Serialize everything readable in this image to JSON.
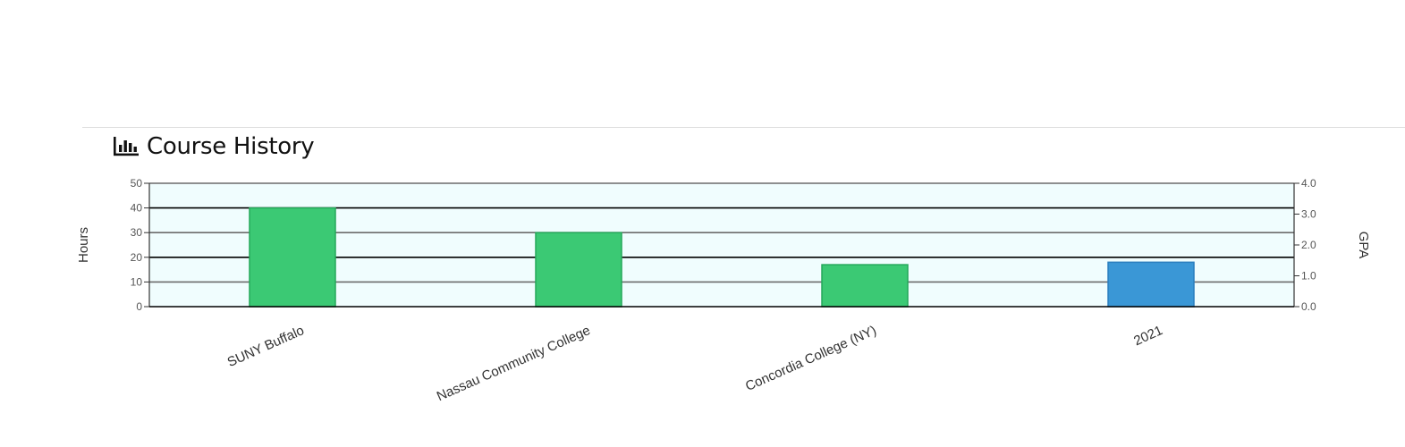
{
  "header": {
    "title": "Course History",
    "icon": "bar-chart-icon"
  },
  "chart_data": {
    "type": "bar",
    "title": "",
    "categories": [
      "SUNY Buffalo",
      "Nassau Community College",
      "Concordia College (NY)",
      "2021"
    ],
    "values": [
      40,
      30,
      17,
      18
    ],
    "bar_colors": [
      "#3bc974",
      "#3bc974",
      "#3bc974",
      "#3a97d6"
    ],
    "ylabel": "Hours",
    "ylim": [
      0,
      50
    ],
    "yticks": [
      "0",
      "10",
      "20",
      "30",
      "40",
      "50"
    ],
    "y2label": "GPA",
    "y2lim": [
      0,
      4
    ],
    "y2ticks": [
      "0.0",
      "1.0",
      "2.0",
      "3.0",
      "4.0"
    ],
    "plot_background": "#f0fdfe",
    "grid": true
  }
}
